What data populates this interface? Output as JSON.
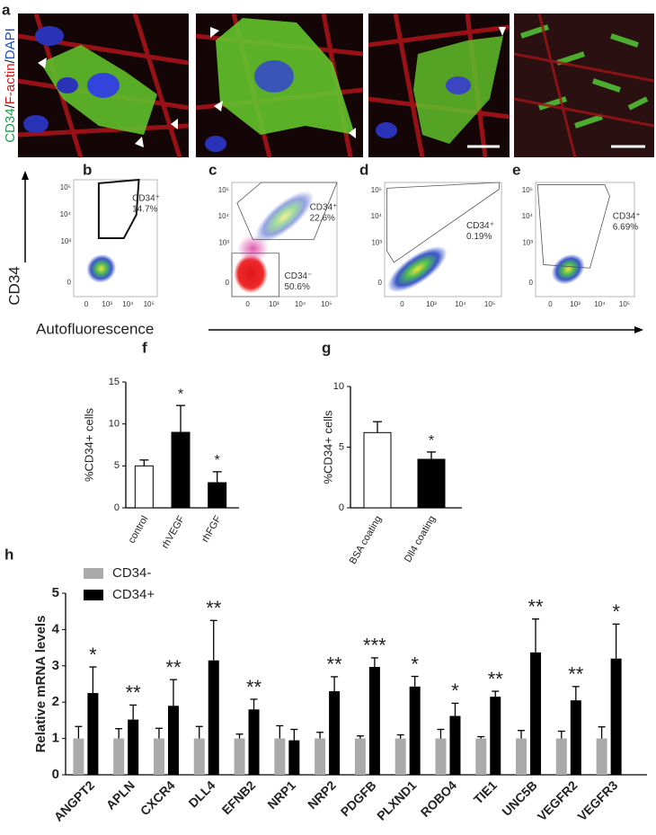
{
  "figure": {
    "panel_labels": [
      "a",
      "b",
      "c",
      "d",
      "e"
    ],
    "stain_label": [
      "CD34",
      "/",
      "F-actin",
      "/",
      "DAPI"
    ],
    "flow_ylabel": "CD34",
    "flow_xlabel": "Autofluorescence",
    "flow": [
      {
        "gates": [
          {
            "name": "CD34⁺",
            "percent": "14.7%"
          }
        ],
        "yticks": [
          "10⁵",
          "10⁴",
          "10³",
          "0"
        ],
        "xticks": [
          "0",
          "10³",
          "10⁴",
          "10⁵"
        ]
      },
      {
        "gates": [
          {
            "name": "CD34⁺",
            "percent": "22.6%"
          },
          {
            "name": "CD34⁻",
            "percent": "50.6%"
          }
        ],
        "yticks": [
          "10⁵",
          "10⁴",
          "10³",
          "0"
        ],
        "xticks": [
          "0",
          "10³",
          "10⁴",
          "10⁵"
        ]
      },
      {
        "gates": [
          {
            "name": "CD34⁺",
            "percent": "0.19%"
          }
        ],
        "yticks": [
          "10⁵",
          "10⁴",
          "10³",
          "0"
        ],
        "xticks": [
          "0",
          "10³",
          "10⁴",
          "10⁵"
        ]
      },
      {
        "gates": [
          {
            "name": "CD34⁺",
            "percent": "6.69%"
          }
        ],
        "yticks": [
          "10⁵",
          "10⁴",
          "10³",
          "0"
        ],
        "xticks": [
          "0",
          "10³",
          "10⁴",
          "10⁵"
        ]
      }
    ]
  },
  "chart_data": [
    {
      "type": "bar",
      "panel": "f",
      "ylabel": "%CD34+ cells",
      "categories": [
        "control",
        "rhVEGF",
        "rhFGF"
      ],
      "values": [
        5,
        9,
        3
      ],
      "errors": [
        0.7,
        3.2,
        1.3
      ],
      "colors": [
        "#ffffff",
        "#000000",
        "#000000"
      ],
      "significance": [
        null,
        "*",
        "*"
      ],
      "ylim": [
        0,
        15
      ],
      "yticks": [
        0,
        5,
        10,
        15
      ]
    },
    {
      "type": "bar",
      "panel": "g",
      "ylabel": "%CD34+ cells",
      "categories": [
        "BSA coating",
        "Dll4 coating"
      ],
      "values": [
        6.2,
        4.0
      ],
      "errors": [
        0.9,
        0.6
      ],
      "colors": [
        "#ffffff",
        "#000000"
      ],
      "significance": [
        null,
        "*"
      ],
      "ylim": [
        0,
        10
      ],
      "yticks": [
        0,
        5,
        10
      ]
    },
    {
      "type": "grouped-bar",
      "panel": "h",
      "ylabel": "Relative mRNA levels",
      "legend": "upper left",
      "categories": [
        "ANGPT2",
        "APLN",
        "CXCR4",
        "DLL4",
        "EFNB2",
        "NRP1",
        "NRP2",
        "PDGFB",
        "PLXND1",
        "ROBO4",
        "TIE1",
        "UNC5B",
        "VEGFR2",
        "VEGFR3"
      ],
      "series": [
        {
          "name": "CD34-",
          "color": "#aaaaaa",
          "values": [
            1,
            1,
            1,
            1,
            1,
            1,
            1,
            1,
            1,
            1,
            1,
            1,
            1,
            1
          ],
          "errors": [
            0.33,
            0.27,
            0.28,
            0.33,
            0.12,
            0.35,
            0.17,
            0.07,
            0.1,
            0.25,
            0.05,
            0.22,
            0.2,
            0.32
          ]
        },
        {
          "name": "CD34+",
          "color": "#000000",
          "values": [
            2.25,
            1.52,
            1.9,
            3.15,
            1.8,
            0.95,
            2.3,
            2.97,
            2.43,
            1.62,
            2.15,
            3.37,
            2.05,
            3.2
          ],
          "errors": [
            0.72,
            0.4,
            0.72,
            1.1,
            0.28,
            0.3,
            0.4,
            0.25,
            0.28,
            0.35,
            0.15,
            0.92,
            0.38,
            0.95
          ]
        }
      ],
      "significance": [
        "*",
        "**",
        "**",
        "**",
        "**",
        null,
        "**",
        "***",
        "*",
        "*",
        "**",
        "**",
        "**",
        "*"
      ],
      "ylim": [
        0,
        5
      ],
      "yticks": [
        0,
        1,
        2,
        3,
        4,
        5
      ]
    }
  ]
}
